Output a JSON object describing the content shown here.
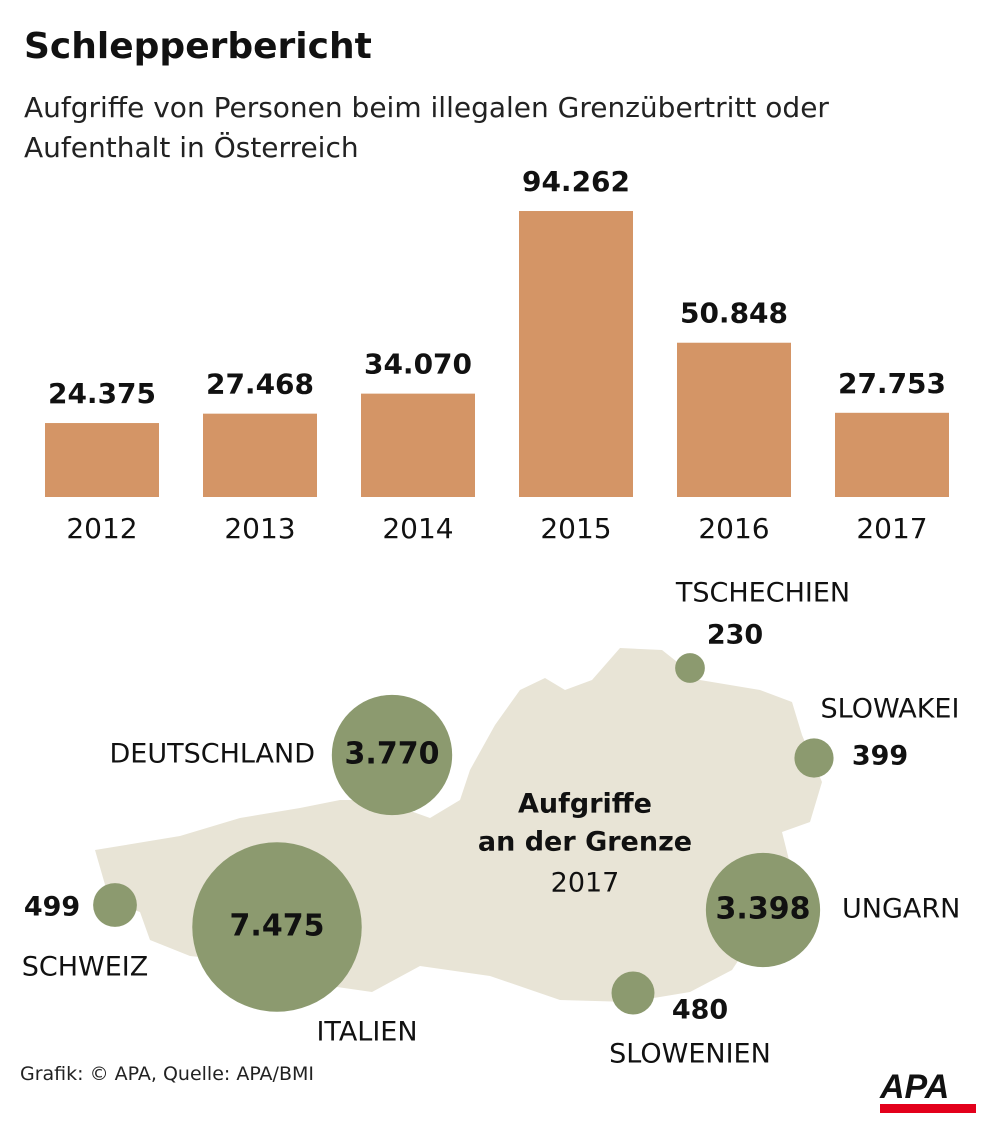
{
  "title": "Schlepperbericht",
  "subtitle": "Aufgriffe von Personen beim illegalen Grenzübertritt oder Aufenthalt in Österreich",
  "chart_data": [
    {
      "type": "bar",
      "categories": [
        "2012",
        "2013",
        "2014",
        "2015",
        "2016",
        "2017"
      ],
      "values": [
        24375,
        27468,
        34070,
        94262,
        50848,
        27753
      ],
      "value_labels": [
        "24.375",
        "27.468",
        "34.070",
        "94.262",
        "50.848",
        "27.753"
      ],
      "color": "#d49566"
    },
    {
      "type": "bubble",
      "title": [
        "Aufgriffe",
        "an der Grenze"
      ],
      "subtitle": "2017",
      "categories": [
        "DEUTSCHLAND",
        "ITALIEN",
        "SCHWEIZ",
        "TSCHECHIEN",
        "SLOWAKEI",
        "UNGARN",
        "SLOWENIEN"
      ],
      "values": [
        3770,
        7475,
        499,
        230,
        399,
        3398,
        480
      ],
      "value_labels": [
        "3.770",
        "7.475",
        "499",
        "230",
        "399",
        "3.398",
        "480"
      ],
      "color": "#8c9a6f"
    }
  ],
  "footer": {
    "source": "Grafik: © APA, Quelle: APA/BMI",
    "logo": "APA"
  }
}
